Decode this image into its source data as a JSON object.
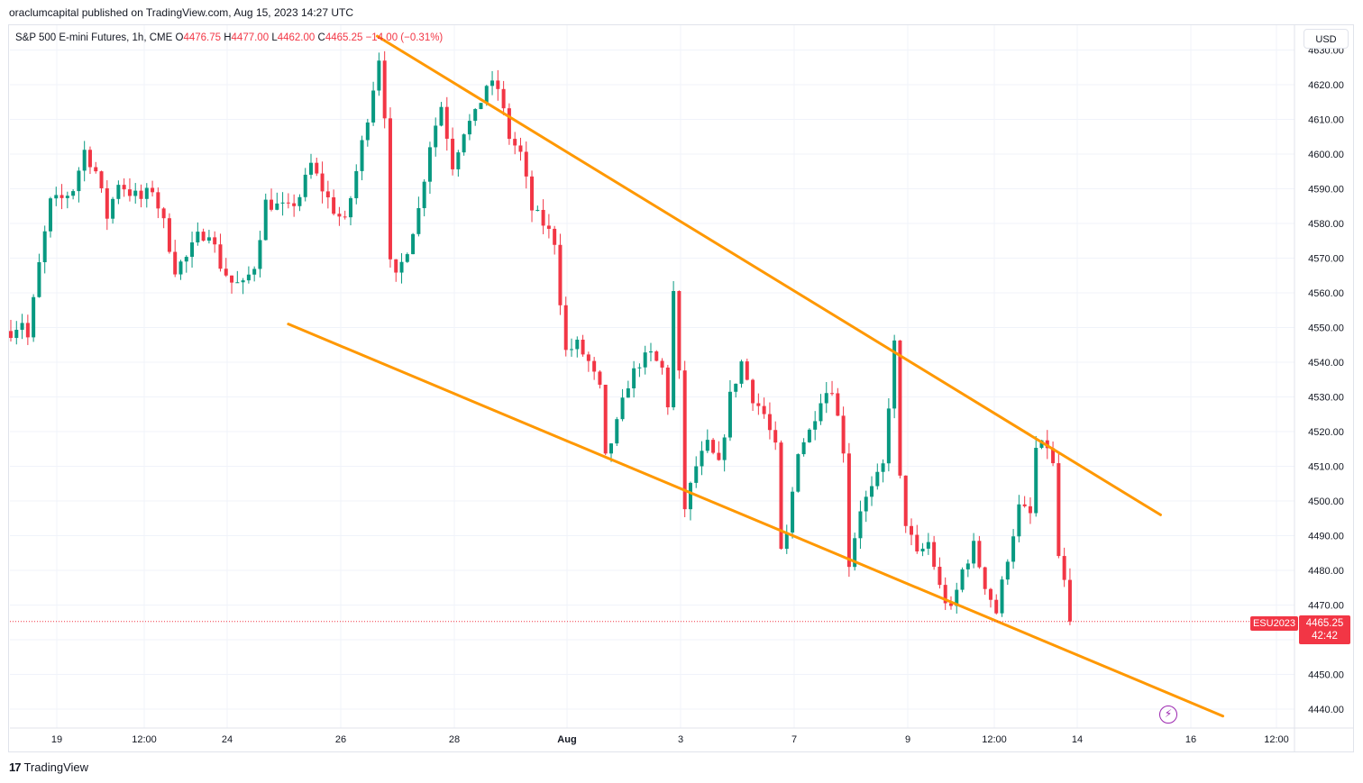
{
  "header": {
    "attribution": "oraclumcapital published on TradingView.com, Aug 15, 2023 14:27 UTC"
  },
  "legend": {
    "instrument": "S&P 500 E-mini Futures, 1h, CME",
    "o_label": "O",
    "o_value": "4476.75",
    "h_label": "H",
    "h_value": "4477.00",
    "l_label": "L",
    "l_value": "4462.00",
    "c_label": "C",
    "c_value": "4465.25",
    "change": "−14.00 (−0.31%)"
  },
  "toolbar": {
    "currency": "USD"
  },
  "last_price": {
    "symbol": "ESU2023",
    "price": "4465.25",
    "countdown": "42:42"
  },
  "footer": {
    "brand": "TradingView",
    "logo_mark": "17"
  },
  "colors": {
    "up": "#089981",
    "down": "#f23645",
    "trendline": "#ff9800",
    "grid": "#f0f3fa",
    "axis_text": "#131722",
    "alert": "#9c27b0"
  },
  "icons": {
    "alert": "lightning-bolt-icon",
    "logo": "tradingview-logo-icon"
  },
  "chart_data": {
    "type": "candlestick",
    "title": "S&P 500 E-mini Futures, 1h, CME",
    "timeframe": "1h",
    "ylim": [
      4436,
      4632
    ],
    "y_ticks": [
      4440,
      4450,
      4460,
      4470,
      4480,
      4490,
      4500,
      4510,
      4520,
      4530,
      4540,
      4550,
      4560,
      4570,
      4580,
      4590,
      4600,
      4610,
      4620,
      4630
    ],
    "x_ticks": [
      "19",
      "12:00",
      "24",
      "26",
      "28",
      "Aug",
      "3",
      "7",
      "9",
      "12:00",
      "14",
      "16",
      "12:00"
    ],
    "grid": true,
    "last_price": 4465.25,
    "price_path": [
      [
        0,
        4549
      ],
      [
        2,
        4552
      ],
      [
        3,
        4547
      ],
      [
        5,
        4568
      ],
      [
        7,
        4586
      ],
      [
        9,
        4587
      ],
      [
        11,
        4590
      ],
      [
        13,
        4601
      ],
      [
        15,
        4595
      ],
      [
        17,
        4582
      ],
      [
        19,
        4592
      ],
      [
        21,
        4589
      ],
      [
        23,
        4587
      ],
      [
        25,
        4590
      ],
      [
        27,
        4580
      ],
      [
        29,
        4567
      ],
      [
        31,
        4570
      ],
      [
        33,
        4576
      ],
      [
        35,
        4578
      ],
      [
        37,
        4568
      ],
      [
        39,
        4563
      ],
      [
        41,
        4562
      ],
      [
        43,
        4568
      ],
      [
        45,
        4586
      ],
      [
        47,
        4585
      ],
      [
        49,
        4584
      ],
      [
        51,
        4588
      ],
      [
        53,
        4597
      ],
      [
        55,
        4590
      ],
      [
        57,
        4584
      ],
      [
        59,
        4580
      ],
      [
        61,
        4595
      ],
      [
        63,
        4611
      ],
      [
        65,
        4628
      ],
      [
        66,
        4612
      ],
      [
        67,
        4568
      ],
      [
        68,
        4564
      ],
      [
        70,
        4573
      ],
      [
        72,
        4584
      ],
      [
        74,
        4603
      ],
      [
        76,
        4614
      ],
      [
        78,
        4597
      ],
      [
        80,
        4607
      ],
      [
        82,
        4611
      ],
      [
        84,
        4620
      ],
      [
        86,
        4619
      ],
      [
        88,
        4605
      ],
      [
        90,
        4600
      ],
      [
        92,
        4584
      ],
      [
        94,
        4580
      ],
      [
        96,
        4575
      ],
      [
        97,
        4558
      ],
      [
        98,
        4543
      ],
      [
        100,
        4545
      ],
      [
        102,
        4540
      ],
      [
        104,
        4532
      ],
      [
        105,
        4512
      ],
      [
        107,
        4522
      ],
      [
        109,
        4534
      ],
      [
        111,
        4540
      ],
      [
        113,
        4542
      ],
      [
        115,
        4538
      ],
      [
        116,
        4528
      ],
      [
        117,
        4560
      ],
      [
        118,
        4536
      ],
      [
        119,
        4498
      ],
      [
        121,
        4510
      ],
      [
        123,
        4516
      ],
      [
        125,
        4510
      ],
      [
        127,
        4530
      ],
      [
        129,
        4540
      ],
      [
        131,
        4530
      ],
      [
        133,
        4525
      ],
      [
        135,
        4515
      ],
      [
        136,
        4485
      ],
      [
        137,
        4490
      ],
      [
        139,
        4515
      ],
      [
        141,
        4520
      ],
      [
        143,
        4530
      ],
      [
        145,
        4533
      ],
      [
        147,
        4515
      ],
      [
        148,
        4482
      ],
      [
        150,
        4498
      ],
      [
        152,
        4503
      ],
      [
        154,
        4510
      ],
      [
        155,
        4528
      ],
      [
        156,
        4545
      ],
      [
        157,
        4506
      ],
      [
        158,
        4494
      ],
      [
        160,
        4484
      ],
      [
        162,
        4488
      ],
      [
        164,
        4475
      ],
      [
        166,
        4468
      ],
      [
        168,
        4480
      ],
      [
        170,
        4487
      ],
      [
        172,
        4476
      ],
      [
        174,
        4468
      ],
      [
        176,
        4484
      ],
      [
        178,
        4498
      ],
      [
        180,
        4496
      ],
      [
        181,
        4515
      ],
      [
        183,
        4516
      ],
      [
        184,
        4510
      ],
      [
        185,
        4484
      ],
      [
        186,
        4476
      ],
      [
        187,
        4465
      ]
    ],
    "trendlines": [
      {
        "name": "upper-channel",
        "from": {
          "t": 64.7,
          "y": 4634
        },
        "to": {
          "t": 203,
          "y": 4496
        }
      },
      {
        "name": "lower-channel",
        "from": {
          "t": 49,
          "y": 4551
        },
        "to": {
          "t": 214,
          "y": 4438
        }
      }
    ]
  }
}
